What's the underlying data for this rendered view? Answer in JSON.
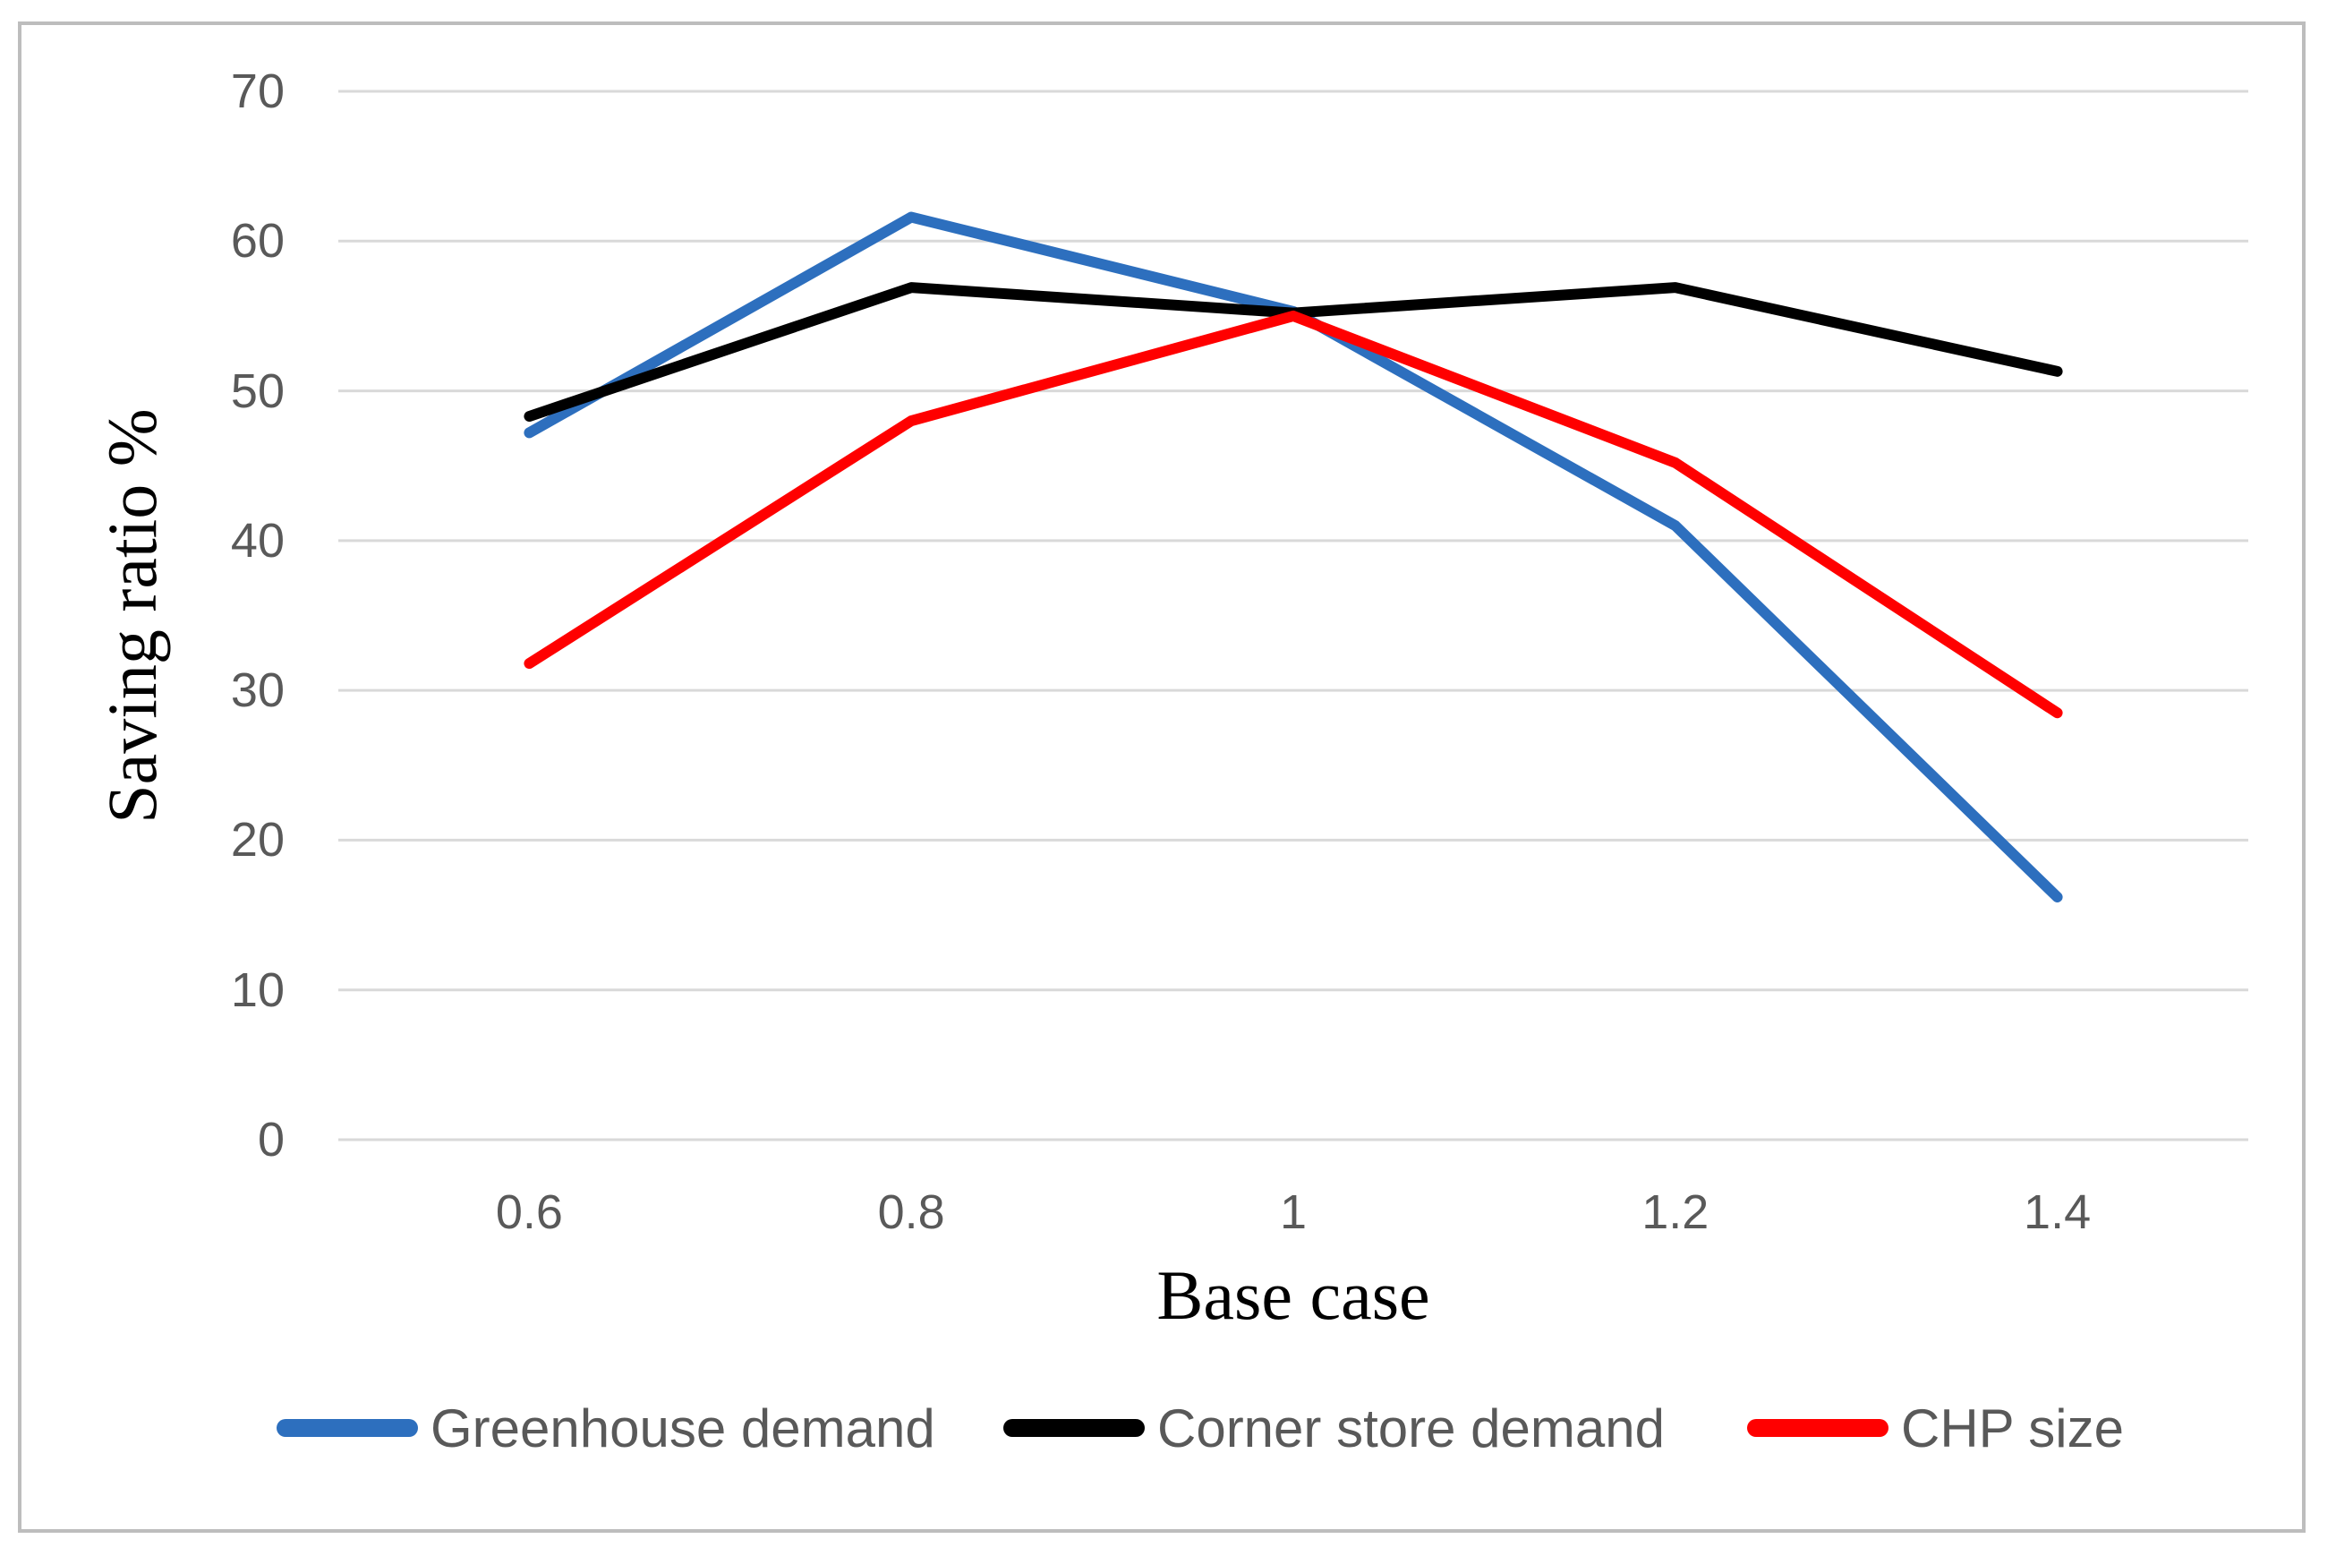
{
  "figure": {
    "y_axis_title": "Saving ratio %",
    "x_axis_title": "Base case"
  },
  "chart_data": {
    "type": "line",
    "categories": [
      "0.6",
      "0.8",
      "1",
      "1.2",
      "1.4"
    ],
    "series": [
      {
        "name": "Greenhouse demand",
        "color": "#2D6FBE",
        "values": [
          47.2,
          61.6,
          55.3,
          41.0,
          16.2
        ]
      },
      {
        "name": "Corner store demand",
        "color": "#000000",
        "values": [
          48.3,
          56.9,
          55.2,
          56.9,
          51.3
        ]
      },
      {
        "name": "CHP size",
        "color": "#FF0000",
        "values": [
          31.8,
          48.0,
          55.0,
          45.2,
          28.5
        ]
      }
    ],
    "title": "",
    "xlabel": "Base case",
    "ylabel": "Saving ratio %",
    "ylim": [
      0,
      70
    ],
    "yticks": [
      0,
      10,
      20,
      30,
      40,
      50,
      60,
      70
    ],
    "grid": true,
    "legend_position": "bottom"
  },
  "colors": {
    "gridline": "#D9D9D9",
    "frame_border": "#BDBDBD",
    "tick_label": "#595959",
    "legend_label": "#595959",
    "axis_title": "#000000"
  }
}
